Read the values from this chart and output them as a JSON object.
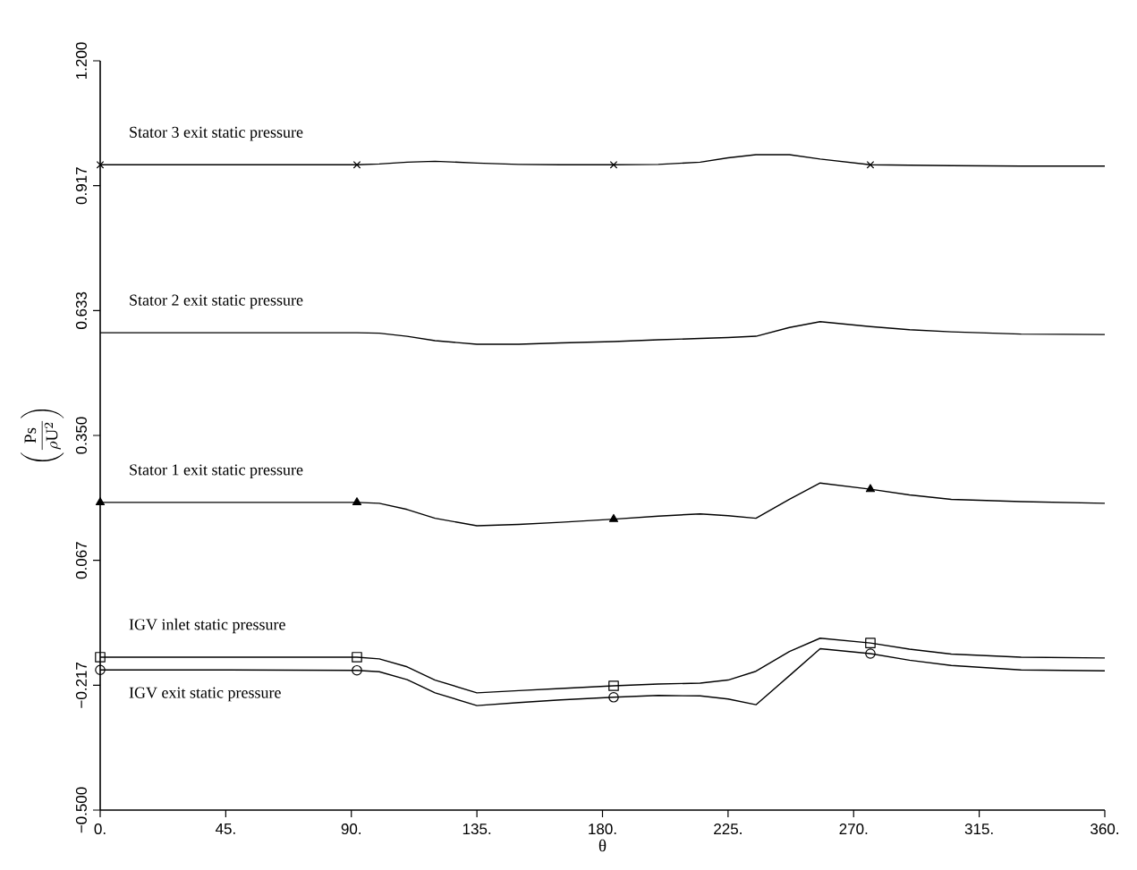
{
  "chart_data": {
    "type": "line",
    "xlabel": "θ",
    "ylabel": "\\displaystyle\\left(\\frac{\\mathrm{Ps}}{\\rho \\mathrm{U}^{2}}\\right)",
    "x": [
      0,
      46,
      92,
      100,
      110,
      120,
      135,
      150,
      165,
      184,
      200,
      215,
      225,
      235,
      247,
      258,
      276,
      290,
      305,
      330,
      360
    ],
    "xlim": [
      0,
      360
    ],
    "ylim": [
      -0.5,
      1.2
    ],
    "xticks": [
      {
        "value": 0,
        "label": "0."
      },
      {
        "value": 45,
        "label": "45."
      },
      {
        "value": 90,
        "label": "90."
      },
      {
        "value": 135,
        "label": "135."
      },
      {
        "value": 180,
        "label": "180."
      },
      {
        "value": 225,
        "label": "225."
      },
      {
        "value": 270,
        "label": "270."
      },
      {
        "value": 315,
        "label": "315."
      },
      {
        "value": 360,
        "label": "360."
      }
    ],
    "yticks": [
      {
        "value": -0.5,
        "label": "−0.500"
      },
      {
        "value": -0.2167,
        "label": "−0.217"
      },
      {
        "value": 0.0667,
        "label": "0.067"
      },
      {
        "value": 0.35,
        "label": "0.350"
      },
      {
        "value": 0.6333,
        "label": "0.633"
      },
      {
        "value": 0.9167,
        "label": "0.917"
      },
      {
        "value": 1.2,
        "label": "1.200"
      }
    ],
    "grid": false,
    "line_style": "solid",
    "series": [
      {
        "name": "Stator 3 exit static pressure",
        "color": "#000000",
        "values": [
          0.964,
          0.964,
          0.964,
          0.966,
          0.97,
          0.972,
          0.968,
          0.965,
          0.964,
          0.964,
          0.965,
          0.97,
          0.98,
          0.987,
          0.987,
          0.977,
          0.964,
          0.963,
          0.962,
          0.961,
          0.961
        ]
      },
      {
        "name": "Stator 2 exit static pressure",
        "color": "#000000",
        "values": [
          0.583,
          0.583,
          0.583,
          0.582,
          0.575,
          0.565,
          0.557,
          0.557,
          0.56,
          0.563,
          0.567,
          0.57,
          0.572,
          0.575,
          0.595,
          0.608,
          0.597,
          0.59,
          0.585,
          0.58,
          0.579
        ]
      },
      {
        "name": "Stator 1 exit static pressure",
        "color": "#000000",
        "values": [
          0.198,
          0.198,
          0.198,
          0.196,
          0.182,
          0.162,
          0.145,
          0.148,
          0.153,
          0.16,
          0.167,
          0.172,
          0.168,
          0.162,
          0.205,
          0.242,
          0.228,
          0.215,
          0.205,
          0.2,
          0.196
        ]
      },
      {
        "name": "IGV inlet static pressure",
        "color": "#000000",
        "values": [
          -0.153,
          -0.153,
          -0.153,
          -0.157,
          -0.175,
          -0.205,
          -0.234,
          -0.229,
          -0.224,
          -0.218,
          -0.214,
          -0.212,
          -0.205,
          -0.185,
          -0.14,
          -0.11,
          -0.121,
          -0.135,
          -0.146,
          -0.153,
          -0.155
        ]
      },
      {
        "name": "IGV exit static pressure",
        "color": "#000000",
        "values": [
          -0.182,
          -0.182,
          -0.183,
          -0.186,
          -0.204,
          -0.234,
          -0.263,
          -0.256,
          -0.25,
          -0.244,
          -0.24,
          -0.241,
          -0.248,
          -0.261,
          -0.195,
          -0.134,
          -0.145,
          -0.16,
          -0.172,
          -0.182,
          -0.184
        ]
      },
      {
        "type": "scatter",
        "color": "#000000",
        "marker": "cross",
        "x": [
          0,
          92,
          184,
          276
        ],
        "values": [
          0.964,
          0.964,
          0.964,
          0.964
        ]
      },
      {
        "type": "scatter",
        "color": "#000000",
        "marker": "triangle",
        "x": [
          0,
          92,
          184,
          276
        ],
        "values": [
          0.198,
          0.198,
          0.16,
          0.228
        ]
      },
      {
        "type": "scatter",
        "color": "#000000",
        "marker": "square",
        "x": [
          0,
          92,
          184,
          276
        ],
        "values": [
          -0.153,
          -0.153,
          -0.218,
          -0.121
        ]
      },
      {
        "type": "scatter",
        "color": "#000000",
        "marker": "circle",
        "x": [
          0,
          92,
          184,
          276
        ],
        "values": [
          -0.182,
          -0.183,
          -0.244,
          -0.145
        ]
      }
    ]
  }
}
